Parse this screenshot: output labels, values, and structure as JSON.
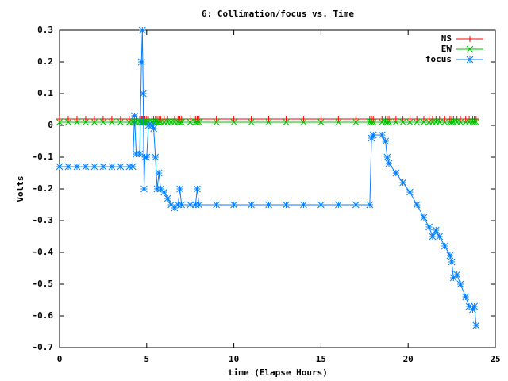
{
  "chart_data": {
    "type": "line",
    "title": "6: Collimation/focus vs. Time",
    "x_label": "time (Elapse Hours)",
    "y_label": "Volts",
    "x": [
      0,
      0.5,
      1,
      1.5,
      2,
      2.5,
      3,
      3.5,
      4,
      4.2,
      4.3,
      4.4,
      4.6,
      4.7,
      4.75,
      4.8,
      4.85,
      4.9,
      5.0,
      5.1,
      5.3,
      5.4,
      5.5,
      5.6,
      5.7,
      5.8,
      6.0,
      6.2,
      6.4,
      6.6,
      6.8,
      6.9,
      7.0,
      7.5,
      7.8,
      7.9,
      8.0,
      9,
      10,
      11,
      12,
      13,
      14,
      15,
      16,
      17,
      17.8,
      17.9,
      18.0,
      18.5,
      18.7,
      18.8,
      18.9,
      19.3,
      19.7,
      20.1,
      20.5,
      20.9,
      21.2,
      21.4,
      21.6,
      21.8,
      22.1,
      22.4,
      22.5,
      22.6,
      22.8,
      23.0,
      23.3,
      23.5,
      23.7,
      23.8,
      23.9
    ],
    "series": [
      {
        "name": "NS",
        "color": "#ff0000",
        "marker": "plus",
        "values": [
          0.02,
          0.02,
          0.02,
          0.02,
          0.02,
          0.02,
          0.02,
          0.02,
          0.02,
          0.02,
          0.02,
          0.02,
          0.02,
          0.02,
          0.02,
          0.02,
          0.02,
          0.02,
          0.02,
          0.02,
          0.02,
          0.02,
          0.02,
          0.02,
          0.02,
          0.02,
          0.02,
          0.02,
          0.02,
          0.02,
          0.02,
          0.02,
          0.02,
          0.02,
          0.02,
          0.02,
          0.02,
          0.02,
          0.02,
          0.02,
          0.02,
          0.02,
          0.02,
          0.02,
          0.02,
          0.02,
          0.02,
          0.02,
          0.02,
          0.02,
          0.02,
          0.02,
          0.02,
          0.02,
          0.02,
          0.02,
          0.02,
          0.02,
          0.02,
          0.02,
          0.02,
          0.02,
          0.02,
          0.02,
          0.02,
          0.02,
          0.02,
          0.02,
          0.02,
          0.02,
          0.02,
          0.02,
          0.02
        ]
      },
      {
        "name": "EW",
        "color": "#00c000",
        "marker": "cross",
        "values": [
          0.01,
          0.01,
          0.01,
          0.01,
          0.01,
          0.01,
          0.01,
          0.01,
          0.01,
          0.01,
          0.01,
          0.01,
          0.01,
          0.01,
          0.01,
          0.01,
          0.01,
          0.01,
          0.01,
          0.01,
          0.01,
          0.01,
          0.01,
          0.01,
          0.01,
          0.01,
          0.01,
          0.01,
          0.01,
          0.01,
          0.01,
          0.01,
          0.01,
          0.01,
          0.01,
          0.01,
          0.01,
          0.01,
          0.01,
          0.01,
          0.01,
          0.01,
          0.01,
          0.01,
          0.01,
          0.01,
          0.01,
          0.01,
          0.01,
          0.01,
          0.01,
          0.01,
          0.01,
          0.01,
          0.01,
          0.01,
          0.01,
          0.01,
          0.01,
          0.01,
          0.01,
          0.01,
          0.01,
          0.01,
          0.01,
          0.01,
          0.01,
          0.01,
          0.01,
          0.01,
          0.01,
          0.01,
          0.01
        ]
      },
      {
        "name": "focus",
        "color": "#0080ff",
        "marker": "star",
        "values": [
          -0.13,
          -0.13,
          -0.13,
          -0.13,
          -0.13,
          -0.13,
          -0.13,
          -0.13,
          -0.13,
          -0.13,
          0.03,
          -0.09,
          -0.09,
          0.2,
          0.3,
          0.1,
          -0.2,
          -0.1,
          -0.1,
          0,
          0,
          -0.01,
          -0.1,
          -0.2,
          -0.15,
          -0.2,
          -0.21,
          -0.23,
          -0.25,
          -0.26,
          -0.25,
          -0.2,
          -0.25,
          -0.25,
          -0.25,
          -0.2,
          -0.25,
          -0.25,
          -0.25,
          -0.25,
          -0.25,
          -0.25,
          -0.25,
          -0.25,
          -0.25,
          -0.25,
          -0.25,
          -0.04,
          -0.03,
          -0.03,
          -0.05,
          -0.1,
          -0.12,
          -0.15,
          -0.18,
          -0.21,
          -0.25,
          -0.29,
          -0.32,
          -0.35,
          -0.33,
          -0.35,
          -0.38,
          -0.41,
          -0.43,
          -0.48,
          -0.47,
          -0.5,
          -0.54,
          -0.57,
          -0.58,
          -0.57,
          -0.63
        ]
      }
    ],
    "xlim": [
      0,
      25
    ],
    "xticks": [
      0,
      5,
      10,
      15,
      20,
      25
    ],
    "ylim": [
      -0.7,
      0.3
    ],
    "yticks": [
      0.3,
      0.2,
      0.1,
      0,
      -0.1,
      -0.2,
      -0.3,
      -0.4,
      -0.5,
      -0.6,
      -0.7
    ],
    "legend": "top-right"
  }
}
